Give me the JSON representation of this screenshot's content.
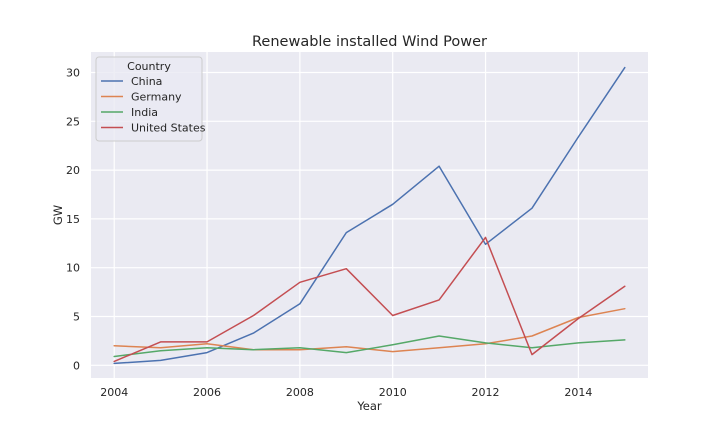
{
  "chart_data": {
    "type": "line",
    "title": "Renewable installed Wind Power",
    "xlabel": "Year",
    "ylabel": "GW",
    "xlim": [
      2003.5,
      2015.5
    ],
    "ylim": [
      -1.3,
      32.1
    ],
    "xticks": [
      2004,
      2006,
      2008,
      2010,
      2012,
      2014
    ],
    "yticks": [
      0,
      5,
      10,
      15,
      20,
      25,
      30
    ],
    "grid": true,
    "legend": {
      "title": "Country",
      "placement": "top-left"
    },
    "x": [
      2004,
      2005,
      2006,
      2007,
      2008,
      2009,
      2010,
      2011,
      2012,
      2013,
      2014,
      2015
    ],
    "series": [
      {
        "name": "China",
        "color": "#4c72b0",
        "values": [
          0.2,
          0.5,
          1.3,
          3.3,
          6.3,
          13.6,
          16.5,
          20.4,
          12.4,
          16.1,
          23.4,
          30.5
        ]
      },
      {
        "name": "Germany",
        "color": "#dd8452",
        "values": [
          2.0,
          1.8,
          2.2,
          1.6,
          1.6,
          1.9,
          1.4,
          1.8,
          2.2,
          3.0,
          4.9,
          5.8
        ]
      },
      {
        "name": "India",
        "color": "#55a868",
        "values": [
          0.9,
          1.5,
          1.8,
          1.6,
          1.8,
          1.3,
          2.1,
          3.0,
          2.3,
          1.8,
          2.3,
          2.6
        ]
      },
      {
        "name": "United States",
        "color": "#c44e52",
        "values": [
          0.4,
          2.4,
          2.4,
          5.1,
          8.5,
          9.9,
          5.1,
          6.7,
          13.1,
          1.1,
          4.8,
          8.1
        ]
      }
    ]
  },
  "colors": {
    "plot_background": "#eaeaf2",
    "grid": "#ffffff",
    "text": "#262626"
  }
}
